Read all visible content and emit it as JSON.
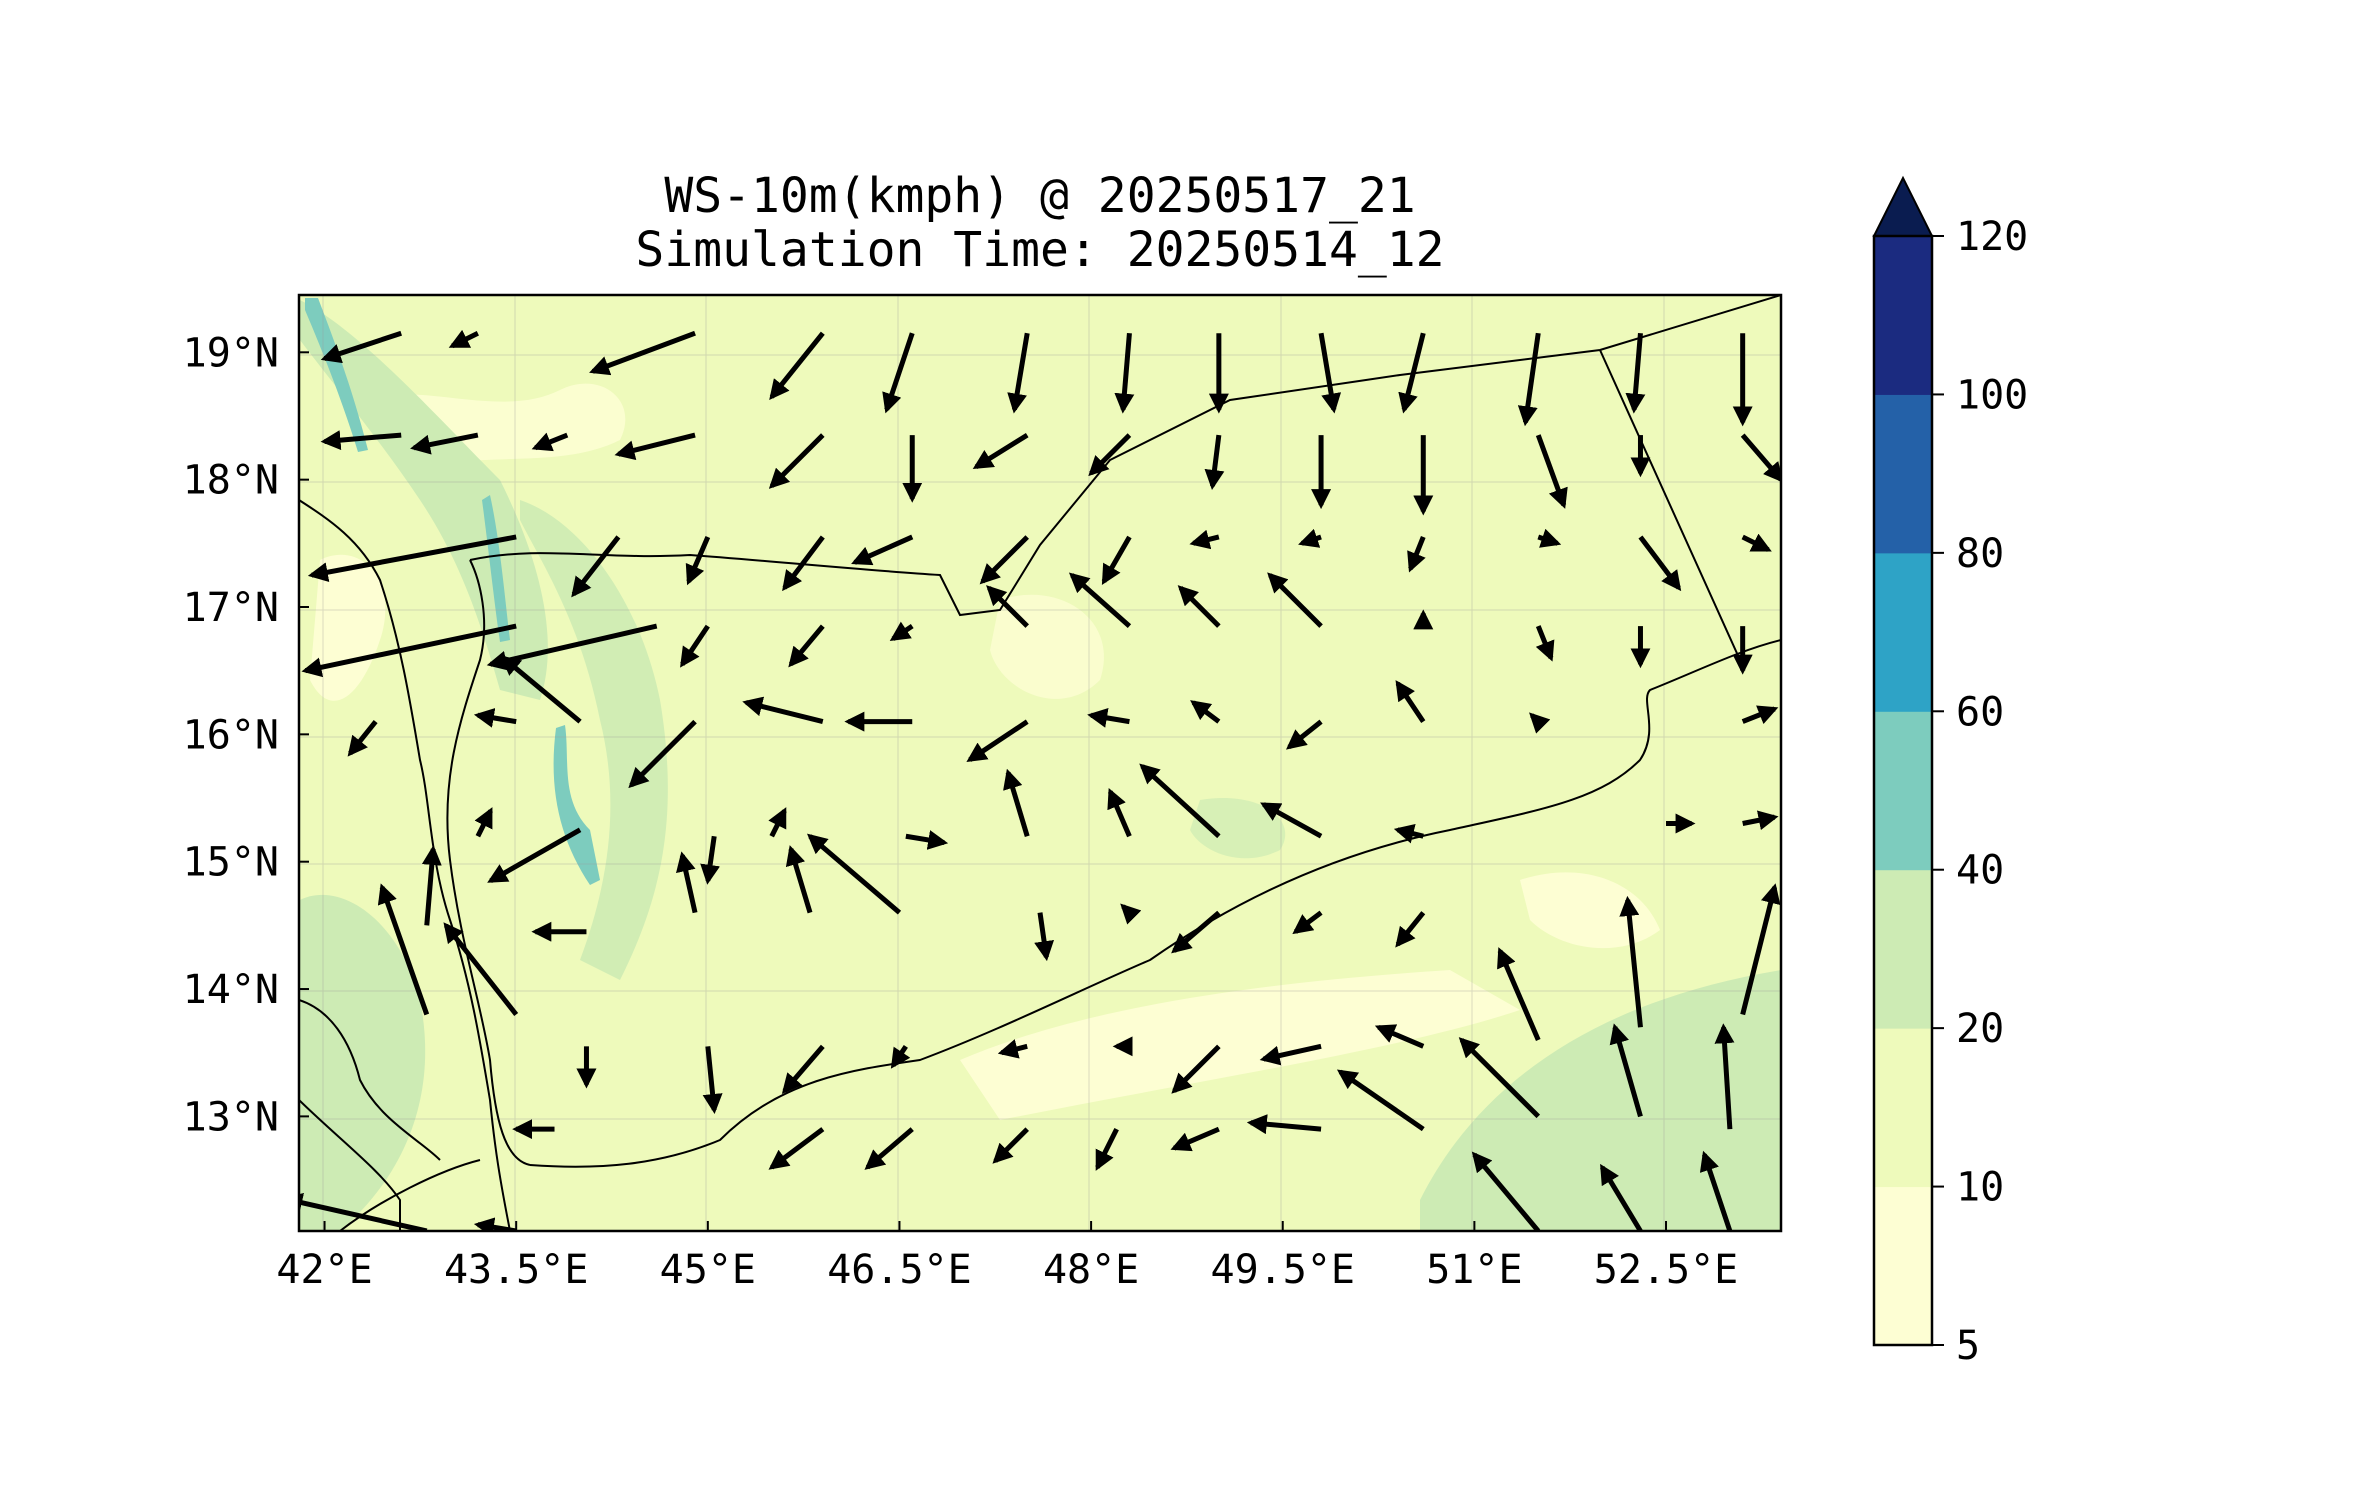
{
  "title": {
    "line1": "WS-10m(kmph) @ 20250517_21",
    "line2": "Simulation Time: 20250514_12"
  },
  "map": {
    "lon_range": [
      41.8,
      53.4
    ],
    "lat_range": [
      12.1,
      19.45
    ],
    "lon_ticks": [
      {
        "value": 42.0,
        "label": "42°E"
      },
      {
        "value": 43.5,
        "label": "43.5°E"
      },
      {
        "value": 45.0,
        "label": "45°E"
      },
      {
        "value": 46.5,
        "label": "46.5°E"
      },
      {
        "value": 48.0,
        "label": "48°E"
      },
      {
        "value": 49.5,
        "label": "49.5°E"
      },
      {
        "value": 51.0,
        "label": "51°E"
      },
      {
        "value": 52.5,
        "label": "52.5°E"
      }
    ],
    "lat_ticks": [
      {
        "value": 13.0,
        "label": "13°N"
      },
      {
        "value": 14.0,
        "label": "14°N"
      },
      {
        "value": 15.0,
        "label": "15°N"
      },
      {
        "value": 16.0,
        "label": "16°N"
      },
      {
        "value": 17.0,
        "label": "17°N"
      },
      {
        "value": 18.0,
        "label": "18°N"
      },
      {
        "value": 19.0,
        "label": "19°N"
      }
    ],
    "grid": true
  },
  "colorbar": {
    "levels": [
      5,
      10,
      20,
      40,
      60,
      80,
      100,
      120
    ],
    "labels": [
      "5",
      "10",
      "20",
      "40",
      "60",
      "80",
      "100",
      "120"
    ],
    "colors": [
      "#fdfed3",
      "#eefabb",
      "#cdebb4",
      "#7dccbe",
      "#2ea3c6",
      "#2461a8",
      "#1b2b80"
    ],
    "extend_color": "#0a1c50",
    "extend": "max"
  },
  "chart_data": {
    "type": "quiver",
    "description_units": "arrows: lon, lat of tail, u/v displacement in degrees",
    "arrows": [
      [
        42.6,
        19.15,
        -0.6,
        -0.2
      ],
      [
        43.2,
        19.15,
        -0.2,
        -0.1
      ],
      [
        44.9,
        19.15,
        -0.8,
        -0.3
      ],
      [
        45.9,
        19.15,
        -0.4,
        -0.5
      ],
      [
        46.6,
        19.15,
        -0.2,
        -0.6
      ],
      [
        47.5,
        19.15,
        -0.1,
        -0.6
      ],
      [
        48.3,
        19.15,
        -0.05,
        -0.6
      ],
      [
        49.0,
        19.15,
        0,
        -0.6
      ],
      [
        49.8,
        19.15,
        0.1,
        -0.6
      ],
      [
        50.6,
        19.15,
        -0.15,
        -0.6
      ],
      [
        51.5,
        19.15,
        -0.1,
        -0.7
      ],
      [
        52.3,
        19.15,
        -0.05,
        -0.6
      ],
      [
        53.1,
        19.15,
        0,
        -0.7
      ],
      [
        42.6,
        18.35,
        -0.6,
        -0.05
      ],
      [
        43.2,
        18.35,
        -0.5,
        -0.1
      ],
      [
        43.9,
        18.35,
        -0.25,
        -0.1
      ],
      [
        44.9,
        18.35,
        -0.6,
        -0.15
      ],
      [
        45.9,
        18.35,
        -0.4,
        -0.4
      ],
      [
        46.6,
        18.35,
        0,
        -0.5
      ],
      [
        47.5,
        18.35,
        -0.4,
        -0.25
      ],
      [
        48.3,
        18.35,
        -0.3,
        -0.3
      ],
      [
        49.0,
        18.35,
        -0.05,
        -0.4
      ],
      [
        49.8,
        18.35,
        0,
        -0.55
      ],
      [
        50.6,
        18.35,
        0,
        -0.6
      ],
      [
        51.5,
        18.35,
        0.2,
        -0.55
      ],
      [
        52.3,
        18.35,
        0,
        -0.3
      ],
      [
        53.1,
        18.35,
        0.3,
        -0.35
      ],
      [
        43.5,
        17.55,
        -1.6,
        -0.3
      ],
      [
        44.3,
        17.55,
        -0.35,
        -0.45
      ],
      [
        45.0,
        17.55,
        -0.15,
        -0.35
      ],
      [
        45.9,
        17.55,
        -0.3,
        -0.4
      ],
      [
        46.6,
        17.55,
        -0.45,
        -0.2
      ],
      [
        47.5,
        17.55,
        -0.35,
        -0.35
      ],
      [
        48.3,
        17.55,
        -0.2,
        -0.35
      ],
      [
        49.0,
        17.55,
        -0.2,
        -0.05
      ],
      [
        49.8,
        17.55,
        -0.15,
        -0.05
      ],
      [
        50.6,
        17.55,
        -0.1,
        -0.25
      ],
      [
        51.5,
        17.55,
        0.15,
        -0.05
      ],
      [
        52.3,
        17.55,
        0.3,
        -0.4
      ],
      [
        53.1,
        17.55,
        0.2,
        -0.1
      ],
      [
        43.5,
        16.85,
        -1.65,
        -0.35
      ],
      [
        44.6,
        16.85,
        -1.3,
        -0.3
      ],
      [
        45.0,
        16.85,
        -0.2,
        -0.3
      ],
      [
        45.9,
        16.85,
        -0.25,
        -0.3
      ],
      [
        46.6,
        16.85,
        -0.15,
        -0.1
      ],
      [
        47.5,
        16.85,
        -0.3,
        0.3
      ],
      [
        48.3,
        16.85,
        -0.45,
        0.4
      ],
      [
        49.0,
        16.85,
        -0.3,
        0.3
      ],
      [
        49.8,
        16.85,
        -0.4,
        0.4
      ],
      [
        50.6,
        16.85,
        0,
        0.1
      ],
      [
        51.5,
        16.85,
        0.1,
        -0.25
      ],
      [
        52.3,
        16.85,
        0,
        -0.3
      ],
      [
        53.1,
        16.85,
        0,
        -0.35
      ],
      [
        42.4,
        16.1,
        -0.2,
        -0.25
      ],
      [
        43.5,
        16.1,
        -0.3,
        0.05
      ],
      [
        44.0,
        16.1,
        -0.6,
        0.5
      ],
      [
        44.9,
        16.1,
        -0.5,
        -0.5
      ],
      [
        45.9,
        16.1,
        -0.6,
        0.15
      ],
      [
        46.6,
        16.1,
        -0.5,
        0.0
      ],
      [
        47.5,
        16.1,
        -0.45,
        -0.3
      ],
      [
        48.3,
        16.1,
        -0.3,
        0.05
      ],
      [
        49.0,
        16.1,
        -0.2,
        0.15
      ],
      [
        49.8,
        16.1,
        -0.25,
        -0.2
      ],
      [
        50.6,
        16.1,
        -0.2,
        0.3
      ],
      [
        51.5,
        16.1,
        -0.05,
        0.05
      ],
      [
        53.1,
        16.1,
        0.25,
        0.1
      ],
      [
        42.8,
        14.5,
        0.05,
        0.6
      ],
      [
        43.2,
        15.2,
        0.1,
        0.2
      ],
      [
        44.0,
        15.25,
        -0.7,
        -0.4
      ],
      [
        45.05,
        15.2,
        -0.05,
        -0.35
      ],
      [
        45.5,
        15.2,
        0.1,
        0.2
      ],
      [
        46.55,
        15.2,
        0.3,
        -0.05
      ],
      [
        47.5,
        15.2,
        -0.15,
        0.5
      ],
      [
        48.3,
        15.2,
        -0.15,
        0.35
      ],
      [
        49.0,
        15.2,
        -0.6,
        0.55
      ],
      [
        49.8,
        15.2,
        -0.45,
        0.25
      ],
      [
        50.6,
        15.2,
        -0.2,
        0.05
      ],
      [
        52.5,
        15.3,
        0.2,
        0.0
      ],
      [
        53.1,
        15.3,
        0.25,
        0.05
      ],
      [
        42.8,
        13.8,
        -0.35,
        1.0
      ],
      [
        43.5,
        13.8,
        -0.55,
        0.7
      ],
      [
        44.05,
        14.45,
        -0.4,
        0.0
      ],
      [
        44.9,
        14.6,
        -0.1,
        0.45
      ],
      [
        45.8,
        14.6,
        -0.15,
        0.5
      ],
      [
        46.5,
        14.6,
        -0.7,
        0.6
      ],
      [
        47.6,
        14.6,
        0.05,
        -0.35
      ],
      [
        48.3,
        14.6,
        -0.05,
        0.05
      ],
      [
        49.0,
        14.6,
        -0.35,
        -0.3
      ],
      [
        49.8,
        14.6,
        -0.2,
        -0.15
      ],
      [
        50.6,
        14.6,
        -0.2,
        -0.25
      ],
      [
        51.5,
        13.6,
        -0.3,
        0.7
      ],
      [
        52.3,
        13.7,
        -0.1,
        1.0
      ],
      [
        53.1,
        13.8,
        0.25,
        1.0
      ],
      [
        44.05,
        13.55,
        0,
        -0.3
      ],
      [
        45.0,
        13.55,
        0.05,
        -0.5
      ],
      [
        45.9,
        13.55,
        -0.3,
        -0.35
      ],
      [
        46.55,
        13.55,
        -0.1,
        -0.15
      ],
      [
        47.5,
        13.55,
        -0.2,
        -0.05
      ],
      [
        48.3,
        13.55,
        -0.1,
        0.0
      ],
      [
        49.0,
        13.55,
        -0.35,
        -0.35
      ],
      [
        49.8,
        13.55,
        -0.45,
        -0.1
      ],
      [
        50.6,
        13.55,
        -0.35,
        0.15
      ],
      [
        51.5,
        13.0,
        -0.6,
        0.6
      ],
      [
        52.3,
        13.0,
        -0.2,
        0.7
      ],
      [
        53.0,
        12.9,
        -0.05,
        0.8
      ],
      [
        43.8,
        12.9,
        -0.3,
        0.0
      ],
      [
        45.9,
        12.9,
        -0.4,
        -0.3
      ],
      [
        46.6,
        12.9,
        -0.35,
        -0.3
      ],
      [
        47.5,
        12.9,
        -0.25,
        -0.25
      ],
      [
        48.2,
        12.9,
        -0.15,
        -0.3
      ],
      [
        49.0,
        12.9,
        -0.35,
        -0.15
      ],
      [
        49.8,
        12.9,
        -0.55,
        0.05
      ],
      [
        50.6,
        12.9,
        -0.65,
        0.45
      ],
      [
        51.5,
        12.1,
        -0.5,
        0.6
      ],
      [
        52.3,
        12.1,
        -0.3,
        0.5
      ],
      [
        53.0,
        12.1,
        -0.2,
        0.6
      ],
      [
        43.5,
        12.1,
        -0.3,
        0.05
      ],
      [
        42.8,
        12.1,
        -1.1,
        0.25
      ]
    ]
  }
}
